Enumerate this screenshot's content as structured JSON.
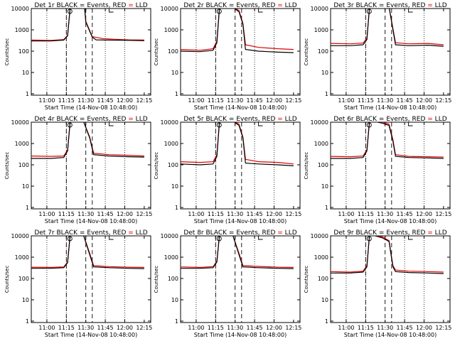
{
  "x_ticks": [
    "11:00",
    "11:15",
    "11:30",
    "11:45",
    "12:00",
    "12:15"
  ],
  "y_ticks": [
    "1",
    "10",
    "100",
    "1000",
    "10000"
  ],
  "ylabel": "Counts/sec",
  "xlabel": "Start Time (14-Nov-08 10:48:00)",
  "series_colors": {
    "events": "#000000",
    "lld": "#e00000"
  },
  "chart_data": [
    {
      "type": "line",
      "title": "Det 1r BLACK = Events, RED = LLD",
      "title_pre": "Det 1r BLACK = Events, RED ",
      "title_eq": "=",
      "title_post": " LLD",
      "x_minutes_after_start": [
        0,
        15,
        28
      ],
      "y_scale": "log",
      "ylim": [
        1,
        10000
      ],
      "x_dotted_lines": [
        "11:00",
        "11:15",
        "11:45",
        "12:00"
      ],
      "x_dashed_lines": [
        "11:15",
        "11:30",
        "11:35"
      ],
      "series": [
        {
          "values": [
            [
              0,
              330
            ],
            [
              15,
              320
            ],
            [
              25,
              350
            ],
            [
              28,
              560
            ],
            [
              30,
              12000
            ],
            [
              40,
              12000
            ],
            [
              41,
              12000
            ],
            [
              42,
              2500
            ],
            [
              47,
              480
            ],
            [
              55,
              390
            ],
            [
              65,
              360
            ],
            [
              75,
              340
            ],
            [
              87,
              330
            ]
          ]
        },
        {
          "values": [
            [
              0,
              300
            ],
            [
              15,
              300
            ],
            [
              25,
              330
            ],
            [
              28,
              520
            ],
            [
              30,
              12000
            ],
            [
              40,
              12000
            ],
            [
              41,
              12000
            ],
            [
              42,
              2300
            ],
            [
              47,
              450
            ],
            [
              50,
              340
            ],
            [
              60,
              330
            ],
            [
              75,
              320
            ],
            [
              87,
              310
            ]
          ]
        }
      ]
    },
    {
      "type": "line",
      "title": "Det 2r BLACK = Events, RED = LLD",
      "title_pre": "Det 2r BLACK = Events, RED ",
      "title_eq": "=",
      "title_post": " LLD",
      "y_scale": "log",
      "ylim": [
        1,
        10000
      ],
      "series": [
        {
          "values": [
            [
              0,
              120
            ],
            [
              15,
              110
            ],
            [
              25,
              130
            ],
            [
              28,
              300
            ],
            [
              30,
              12000
            ],
            [
              40,
              12000
            ],
            [
              45,
              8000
            ],
            [
              48,
              2000
            ],
            [
              50,
              200
            ],
            [
              60,
              150
            ],
            [
              75,
              130
            ],
            [
              87,
              120
            ]
          ]
        },
        {
          "values": [
            [
              0,
              100
            ],
            [
              15,
              95
            ],
            [
              25,
              110
            ],
            [
              28,
              250
            ],
            [
              30,
              12000
            ],
            [
              40,
              12000
            ],
            [
              45,
              7000
            ],
            [
              48,
              1800
            ],
            [
              50,
              120
            ],
            [
              60,
              100
            ],
            [
              75,
              90
            ],
            [
              87,
              85
            ]
          ]
        }
      ]
    },
    {
      "type": "line",
      "title": "Det 3r BLACK = Events, RED = LLD",
      "title_pre": "Det 3r BLACK = Events, RED ",
      "title_eq": "=",
      "title_post": " LLD",
      "y_scale": "log",
      "ylim": [
        1,
        10000
      ],
      "series": [
        {
          "values": [
            [
              0,
              230
            ],
            [
              15,
              220
            ],
            [
              25,
              240
            ],
            [
              28,
              400
            ],
            [
              30,
              12000
            ],
            [
              45,
              12000
            ],
            [
              50,
              250
            ],
            [
              60,
              220
            ],
            [
              75,
              230
            ],
            [
              87,
              200
            ]
          ]
        },
        {
          "values": [
            [
              0,
              180
            ],
            [
              15,
              180
            ],
            [
              25,
              200
            ],
            [
              28,
              350
            ],
            [
              30,
              12000
            ],
            [
              45,
              12000
            ],
            [
              50,
              200
            ],
            [
              60,
              180
            ],
            [
              75,
              190
            ],
            [
              87,
              170
            ]
          ]
        }
      ]
    },
    {
      "type": "line",
      "title": "Det 4r BLACK = Events, RED = LLD",
      "title_pre": "Det 4r BLACK = Events, RED ",
      "title_eq": "=",
      "title_post": " LLD",
      "y_scale": "log",
      "ylim": [
        1,
        10000
      ],
      "series": [
        {
          "values": [
            [
              0,
              260
            ],
            [
              15,
              250
            ],
            [
              25,
              260
            ],
            [
              28,
              500
            ],
            [
              30,
              12000
            ],
            [
              40,
              12000
            ],
            [
              45,
              2000
            ],
            [
              48,
              350
            ],
            [
              60,
              300
            ],
            [
              75,
              280
            ],
            [
              87,
              260
            ]
          ]
        },
        {
          "values": [
            [
              0,
              200
            ],
            [
              15,
              200
            ],
            [
              25,
              220
            ],
            [
              28,
              450
            ],
            [
              30,
              12000
            ],
            [
              40,
              12000
            ],
            [
              45,
              1800
            ],
            [
              48,
              300
            ],
            [
              60,
              260
            ],
            [
              75,
              240
            ],
            [
              87,
              230
            ]
          ]
        }
      ]
    },
    {
      "type": "line",
      "title": "Det 5r BLACK = Events, RED = LLD",
      "title_pre": "Det 5r BLACK = Events, RED ",
      "title_eq": "=",
      "title_post": " LLD",
      "y_scale": "log",
      "ylim": [
        1,
        10000
      ],
      "series": [
        {
          "values": [
            [
              0,
              140
            ],
            [
              15,
              130
            ],
            [
              25,
              140
            ],
            [
              28,
              300
            ],
            [
              30,
              12000
            ],
            [
              40,
              12000
            ],
            [
              45,
              8000
            ],
            [
              48,
              2000
            ],
            [
              50,
              180
            ],
            [
              60,
              140
            ],
            [
              75,
              130
            ],
            [
              87,
              110
            ]
          ]
        },
        {
          "values": [
            [
              0,
              110
            ],
            [
              15,
              100
            ],
            [
              25,
              110
            ],
            [
              28,
              250
            ],
            [
              30,
              12000
            ],
            [
              40,
              12000
            ],
            [
              45,
              7000
            ],
            [
              48,
              1800
            ],
            [
              50,
              120
            ],
            [
              60,
              110
            ],
            [
              75,
              100
            ],
            [
              87,
              90
            ]
          ]
        }
      ]
    },
    {
      "type": "line",
      "title": "Det 6r BLACK = Events, RED = LLD",
      "title_pre": "Det 6r BLACK = Events, RED ",
      "title_eq": "=",
      "title_post": " LLD",
      "y_scale": "log",
      "ylim": [
        1,
        10000
      ],
      "series": [
        {
          "values": [
            [
              0,
              250
            ],
            [
              15,
              240
            ],
            [
              25,
              260
            ],
            [
              28,
              500
            ],
            [
              30,
              12000
            ],
            [
              40,
              10000
            ],
            [
              45,
              8000
            ],
            [
              48,
              1500
            ],
            [
              50,
              300
            ],
            [
              60,
              250
            ],
            [
              75,
              240
            ],
            [
              87,
              230
            ]
          ]
        },
        {
          "values": [
            [
              0,
              200
            ],
            [
              15,
              200
            ],
            [
              25,
              220
            ],
            [
              28,
              450
            ],
            [
              30,
              12000
            ],
            [
              40,
              9000
            ],
            [
              45,
              7000
            ],
            [
              48,
              1300
            ],
            [
              50,
              250
            ],
            [
              60,
              220
            ],
            [
              75,
              210
            ],
            [
              87,
              200
            ]
          ]
        }
      ]
    },
    {
      "type": "line",
      "title": "Det 7r BLACK = Events, RED = LLD",
      "title_pre": "Det 7r BLACK = Events, RED ",
      "title_eq": "=",
      "title_post": " LLD",
      "y_scale": "log",
      "ylim": [
        1,
        10000
      ],
      "series": [
        {
          "values": [
            [
              0,
              340
            ],
            [
              15,
              330
            ],
            [
              25,
              350
            ],
            [
              28,
              600
            ],
            [
              30,
              12000
            ],
            [
              40,
              12000
            ],
            [
              45,
              1500
            ],
            [
              48,
              400
            ],
            [
              60,
              360
            ],
            [
              75,
              340
            ],
            [
              87,
              330
            ]
          ]
        },
        {
          "values": [
            [
              0,
              300
            ],
            [
              15,
              300
            ],
            [
              25,
              320
            ],
            [
              28,
              550
            ],
            [
              30,
              12000
            ],
            [
              40,
              12000
            ],
            [
              45,
              1300
            ],
            [
              48,
              350
            ],
            [
              60,
              320
            ],
            [
              75,
              300
            ],
            [
              87,
              290
            ]
          ]
        }
      ]
    },
    {
      "type": "line",
      "title": "Det 8r BLACK = Events, RED = LLD",
      "title_pre": "Det 8r BLACK = Events, RED ",
      "title_eq": "=",
      "title_post": " LLD",
      "y_scale": "log",
      "ylim": [
        1,
        10000
      ],
      "series": [
        {
          "values": [
            [
              0,
              350
            ],
            [
              15,
              330
            ],
            [
              25,
              360
            ],
            [
              28,
              650
            ],
            [
              30,
              12000
            ],
            [
              40,
              12000
            ],
            [
              45,
              1500
            ],
            [
              48,
              400
            ],
            [
              60,
              370
            ],
            [
              75,
              340
            ],
            [
              87,
              330
            ]
          ]
        },
        {
          "values": [
            [
              0,
              300
            ],
            [
              15,
              300
            ],
            [
              25,
              320
            ],
            [
              28,
              600
            ],
            [
              30,
              12000
            ],
            [
              40,
              12000
            ],
            [
              45,
              1300
            ],
            [
              48,
              350
            ],
            [
              60,
              320
            ],
            [
              75,
              300
            ],
            [
              87,
              290
            ]
          ]
        }
      ]
    },
    {
      "type": "line",
      "title": "Det 9r BLACK = Events, RED = LLD",
      "title_pre": "Det 9r BLACK = Events, RED ",
      "title_eq": "=",
      "title_post": " LLD",
      "y_scale": "log",
      "ylim": [
        1,
        10000
      ],
      "series": [
        {
          "values": [
            [
              0,
              210
            ],
            [
              15,
              200
            ],
            [
              25,
              220
            ],
            [
              28,
              400
            ],
            [
              30,
              12000
            ],
            [
              40,
              9000
            ],
            [
              45,
              6000
            ],
            [
              48,
              400
            ],
            [
              50,
              250
            ],
            [
              60,
              220
            ],
            [
              75,
              210
            ],
            [
              87,
              200
            ]
          ]
        },
        {
          "values": [
            [
              0,
              180
            ],
            [
              15,
              180
            ],
            [
              25,
              200
            ],
            [
              28,
              350
            ],
            [
              30,
              12000
            ],
            [
              40,
              8000
            ],
            [
              45,
              5500
            ],
            [
              48,
              350
            ],
            [
              50,
              210
            ],
            [
              60,
              190
            ],
            [
              75,
              180
            ],
            [
              87,
              170
            ]
          ]
        }
      ]
    }
  ]
}
